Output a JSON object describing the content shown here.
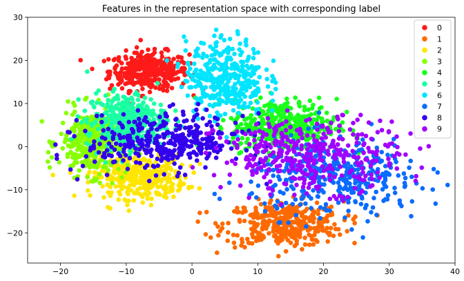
{
  "chart_data": {
    "type": "scatter",
    "title": "Features in the representation space with corresponding label",
    "xlabel": "",
    "ylabel": "",
    "xlim": [
      -25,
      40
    ],
    "ylim": [
      -27,
      30
    ],
    "x_ticks": [
      -20,
      -10,
      0,
      10,
      20,
      30,
      40
    ],
    "y_ticks": [
      -20,
      -10,
      0,
      10,
      20,
      30
    ],
    "x_tick_labels": [
      "−20",
      "−10",
      "0",
      "10",
      "20",
      "30",
      "40"
    ],
    "y_tick_labels": [
      "−20",
      "−10",
      "0",
      "10",
      "20",
      "30"
    ],
    "grid": false,
    "legend_position": "top-right",
    "series": [
      {
        "name": "0",
        "color": "#ff1a1a",
        "center": [
          -6.5,
          17.5
        ],
        "spread": [
          3.0,
          2.2
        ]
      },
      {
        "name": "1",
        "color": "#ff6a00",
        "center": [
          14.0,
          -18.0
        ],
        "spread": [
          4.5,
          2.6
        ]
      },
      {
        "name": "2",
        "color": "#ffe600",
        "center": [
          -8.0,
          -7.0
        ],
        "spread": [
          3.5,
          2.5
        ]
      },
      {
        "name": "3",
        "color": "#88ff00",
        "center": [
          -15.0,
          1.0
        ],
        "spread": [
          2.6,
          3.8
        ]
      },
      {
        "name": "4",
        "color": "#1aff1a",
        "center": [
          14.0,
          5.0
        ],
        "spread": [
          4.0,
          3.0
        ]
      },
      {
        "name": "5",
        "color": "#1affa3",
        "center": [
          -10.0,
          6.0
        ],
        "spread": [
          3.0,
          3.2
        ]
      },
      {
        "name": "6",
        "color": "#00e5ff",
        "center": [
          5.0,
          16.0
        ],
        "spread": [
          3.0,
          4.5
        ]
      },
      {
        "name": "7",
        "color": "#0a6bff",
        "center": [
          22.0,
          -7.0
        ],
        "spread": [
          6.5,
          4.5
        ]
      },
      {
        "name": "8",
        "color": "#3300ee",
        "center": [
          -4.0,
          1.0
        ],
        "spread": [
          6.0,
          3.2
        ]
      },
      {
        "name": "9",
        "color": "#a100ff",
        "center": [
          18.0,
          -2.0
        ],
        "spread": [
          7.0,
          4.2
        ]
      }
    ]
  }
}
